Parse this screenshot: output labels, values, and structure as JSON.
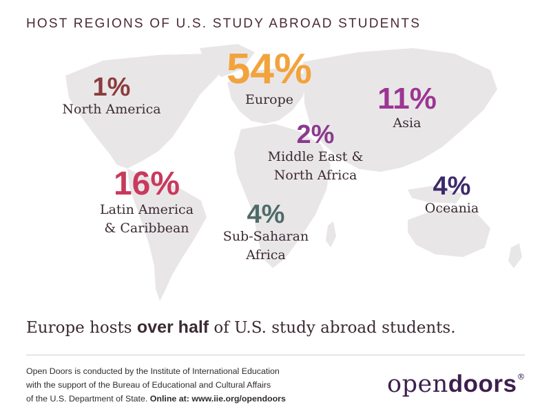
{
  "title": "HOST REGIONS OF U.S. STUDY ABROAD STUDENTS",
  "colors": {
    "north_america": "#8a3d3b",
    "europe": "#f2a33c",
    "asia": "#9c3592",
    "middle_east": "#8a3a8e",
    "latin_america": "#c83a5c",
    "sub_saharan": "#4d6b68",
    "oceania": "#3c2b6b",
    "map": "#e9e6e8",
    "text": "#3b2a33"
  },
  "chart_data": {
    "type": "map",
    "regions": [
      {
        "key": "north_america",
        "value": 1,
        "display": "1%",
        "label": [
          "North America"
        ]
      },
      {
        "key": "europe",
        "value": 54,
        "display": "54%",
        "label": [
          "Europe"
        ]
      },
      {
        "key": "asia",
        "value": 11,
        "display": "11%",
        "label": [
          "Asia"
        ]
      },
      {
        "key": "middle_east",
        "value": 2,
        "display": "2%",
        "label": [
          "Middle East &",
          "North Africa"
        ]
      },
      {
        "key": "latin_america",
        "value": 16,
        "display": "16%",
        "label": [
          "Latin America",
          "& Caribbean"
        ]
      },
      {
        "key": "sub_saharan",
        "value": 4,
        "display": "4%",
        "label": [
          "Sub-Saharan",
          "Africa"
        ]
      },
      {
        "key": "oceania",
        "value": 4,
        "display": "4%",
        "label": [
          "Oceania"
        ]
      }
    ]
  },
  "headline": {
    "before": "Europe hosts ",
    "bold": "over half",
    "after": " of U.S. study abroad students."
  },
  "source": {
    "line1": "Open Doors is conducted by the Institute of International Education",
    "line2": "with the support of the Bureau of Educational and Cultural Affairs",
    "line3_plain": "of the U.S. Department of State. ",
    "line3_bold": "Online at: www.iie.org/opendoors"
  },
  "logo": {
    "part1": "open",
    "part2": "doors",
    "mark": "®"
  }
}
